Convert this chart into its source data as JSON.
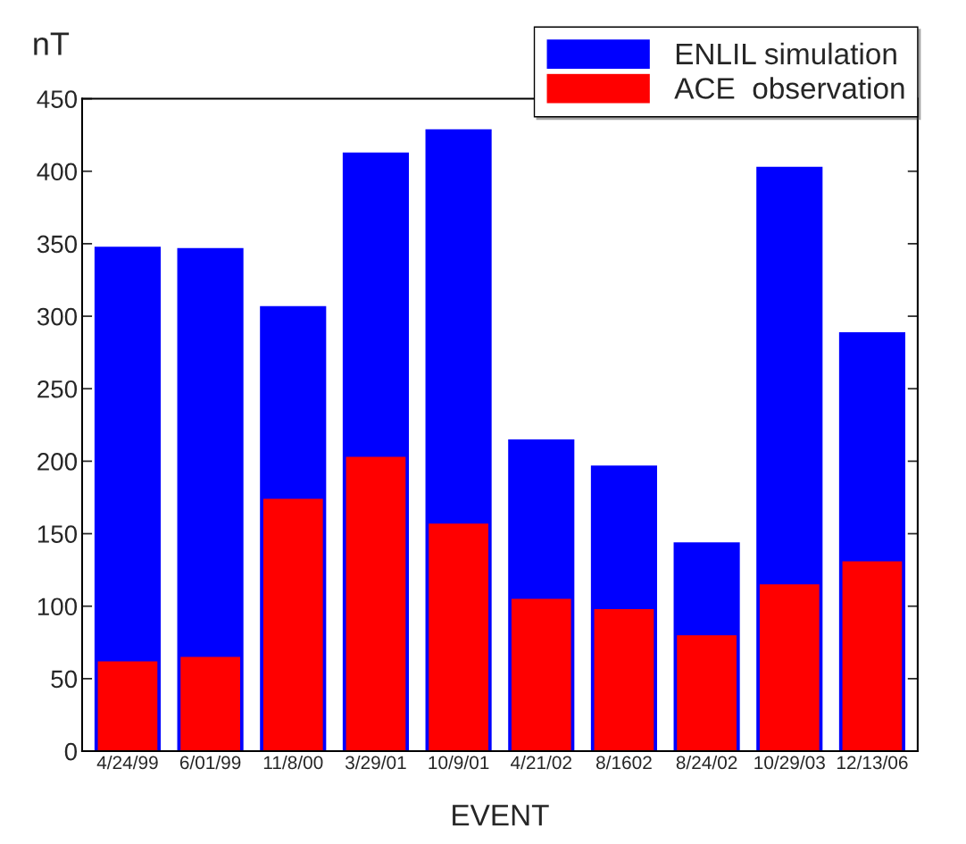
{
  "chart_data": {
    "type": "bar",
    "categories": [
      "4/24/99",
      "6/01/99",
      "11/8/00",
      "3/29/01",
      "10/9/01",
      "4/21/02",
      "8/1602",
      "8/24/02",
      "10/29/03",
      "12/13/06"
    ],
    "series": [
      {
        "name": "ENLIL simulation",
        "color": "#0000ff",
        "values": [
          348,
          347,
          307,
          413,
          429,
          215,
          197,
          144,
          403,
          289
        ]
      },
      {
        "name": "ACE  observation",
        "color": "#ff0000",
        "values": [
          62,
          65,
          174,
          203,
          157,
          105,
          98,
          80,
          115,
          131
        ]
      }
    ],
    "xlabel": "EVENT",
    "ylabel": "nT",
    "ylim": [
      0,
      450
    ],
    "yticks": [
      0,
      50,
      100,
      150,
      200,
      250,
      300,
      350,
      400,
      450
    ],
    "grid": false,
    "legend": "top right"
  }
}
